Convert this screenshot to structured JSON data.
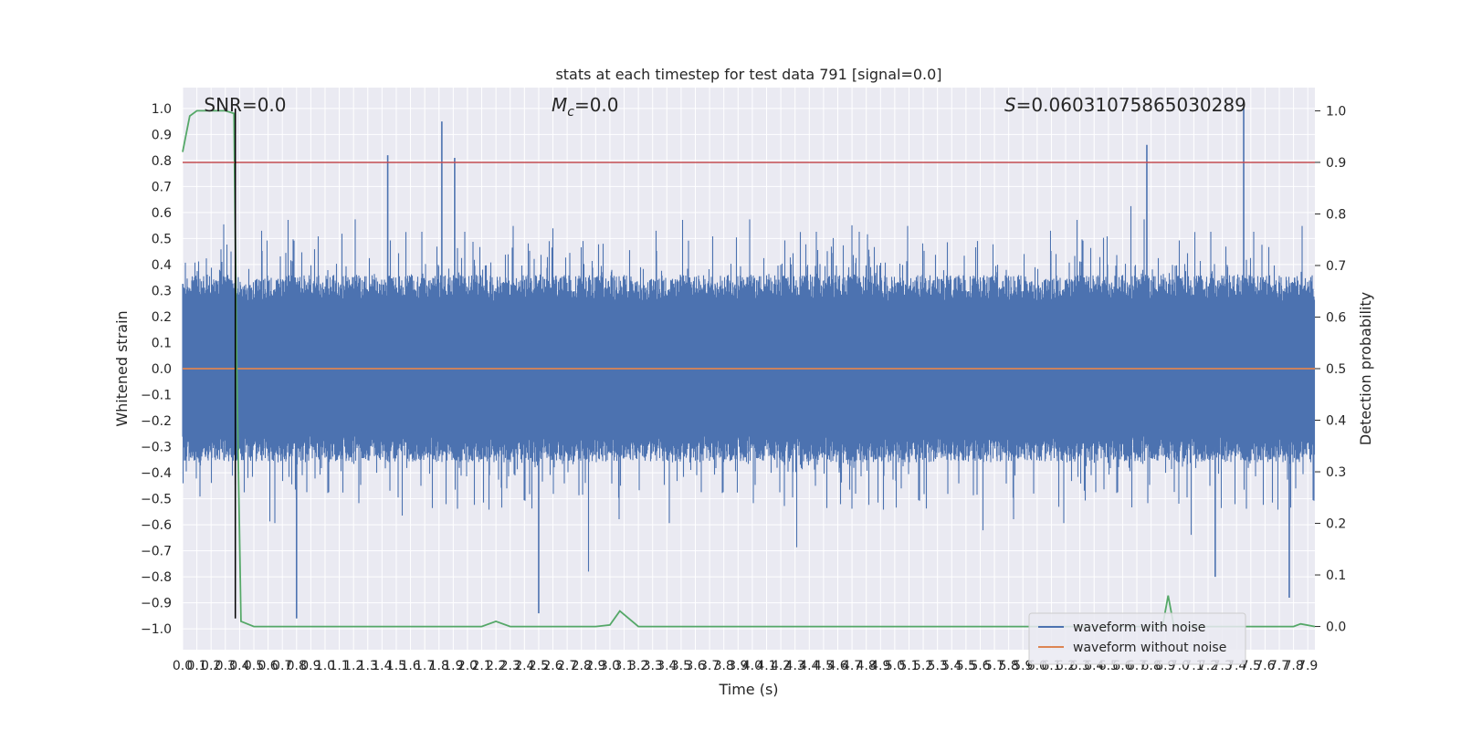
{
  "chart_data": {
    "type": "line",
    "title": "stats at each timestep for test data 791 [signal=0.0]",
    "xlabel": "Time (s)",
    "ylabel": "Whitened strain",
    "y2label": "Detection probability",
    "xlim": [
      0,
      7.95
    ],
    "ylim": [
      -1.08,
      1.08
    ],
    "y2lim": [
      -0.045,
      1.045
    ],
    "x_ticks": [
      0.0,
      0.1,
      0.2,
      0.3,
      0.4,
      0.5,
      0.6,
      0.7,
      0.8,
      0.9,
      1.0,
      1.1,
      1.2,
      1.3,
      1.4,
      1.5,
      1.6,
      1.7,
      1.8,
      1.9,
      2.0,
      2.1,
      2.2,
      2.3,
      2.4,
      2.5,
      2.6,
      2.7,
      2.8,
      2.9,
      3.0,
      3.1,
      3.2,
      3.3,
      3.4,
      3.5,
      3.6,
      3.7,
      3.8,
      3.9,
      4.0,
      4.1,
      4.2,
      4.3,
      4.4,
      4.5,
      4.6,
      4.7,
      4.8,
      4.9,
      5.0,
      5.1,
      5.2,
      5.3,
      5.4,
      5.5,
      5.6,
      5.7,
      5.8,
      5.9,
      6.0,
      6.1,
      6.2,
      6.3,
      6.4,
      6.5,
      6.6,
      6.7,
      6.8,
      6.9,
      7.0,
      7.1,
      7.2,
      7.3,
      7.4,
      7.5,
      7.6,
      7.7,
      7.8,
      7.9
    ],
    "y_ticks": [
      -1.0,
      -0.9,
      -0.8,
      -0.7,
      -0.6,
      -0.5,
      -0.4,
      -0.3,
      -0.2,
      -0.1,
      0.0,
      0.1,
      0.2,
      0.3,
      0.4,
      0.5,
      0.6,
      0.7,
      0.8,
      0.9,
      1.0
    ],
    "y2_ticks": [
      0.0,
      0.1,
      0.2,
      0.3,
      0.4,
      0.5,
      0.6,
      0.7,
      0.8,
      0.9,
      1.0
    ],
    "grid": true,
    "legend_position": "lower-right",
    "annotations": [
      {
        "text_parts": [
          {
            "t": "SNR=0.0"
          }
        ],
        "position": "top-left"
      },
      {
        "text_parts": [
          {
            "t": "M",
            "italic": true
          },
          {
            "t": "c",
            "italic": true,
            "sub": true
          },
          {
            "t": "=0.0"
          }
        ],
        "position": "top-center"
      },
      {
        "text_parts": [
          {
            "t": "S",
            "italic": true
          },
          {
            "t": "=0.06031075865030289"
          }
        ],
        "position": "top-right"
      }
    ],
    "series": [
      {
        "name": "waveform with noise",
        "color": "#4c72b0",
        "axis": "left",
        "style": "noise",
        "amplitude_approx": 0.4,
        "peak_points": [
          {
            "x": 1.82,
            "y": 0.95
          },
          {
            "x": 7.45,
            "y": 1.0
          },
          {
            "x": 6.77,
            "y": 0.86
          },
          {
            "x": 1.44,
            "y": 0.82
          },
          {
            "x": 1.91,
            "y": 0.81
          },
          {
            "x": 0.8,
            "y": -0.96
          },
          {
            "x": 2.5,
            "y": -0.94
          },
          {
            "x": 7.77,
            "y": -0.88
          },
          {
            "x": 7.25,
            "y": -0.8
          }
        ]
      },
      {
        "name": "waveform without noise",
        "color": "#dd8452",
        "axis": "left",
        "x": [
          0.0,
          7.95
        ],
        "y": [
          0.0,
          0.0
        ]
      },
      {
        "name": "",
        "color": "#55a868",
        "axis": "right",
        "x": [
          0.0,
          0.05,
          0.1,
          0.2,
          0.3,
          0.36,
          0.38,
          0.41,
          0.5,
          1.0,
          2.0,
          2.1,
          2.2,
          2.3,
          2.4,
          2.5,
          2.8,
          2.9,
          3.0,
          3.07,
          3.2,
          4.0,
          5.0,
          6.0,
          6.5,
          6.88,
          6.92,
          6.96,
          7.0,
          7.5,
          7.8,
          7.85,
          7.95
        ],
        "y": [
          0.92,
          0.99,
          1.0,
          1.0,
          1.0,
          0.995,
          0.5,
          0.01,
          0.0,
          0.0,
          0.0,
          0.0,
          0.01,
          0.0,
          0.0,
          0.0,
          0.0,
          0.0,
          0.003,
          0.03,
          0.0,
          0.0,
          0.0,
          0.0,
          0.0,
          0.0,
          0.06,
          0.0,
          0.0,
          0.0,
          0.0,
          0.005,
          0.0
        ]
      }
    ],
    "reference_lines": [
      {
        "axis": "right",
        "orientation": "horizontal",
        "value": 0.9,
        "color": "#c44e52"
      },
      {
        "axis": "left",
        "orientation": "vertical",
        "value": 0.37,
        "y_range": [
          -0.96,
          1.0
        ],
        "color": "#000000"
      }
    ]
  }
}
